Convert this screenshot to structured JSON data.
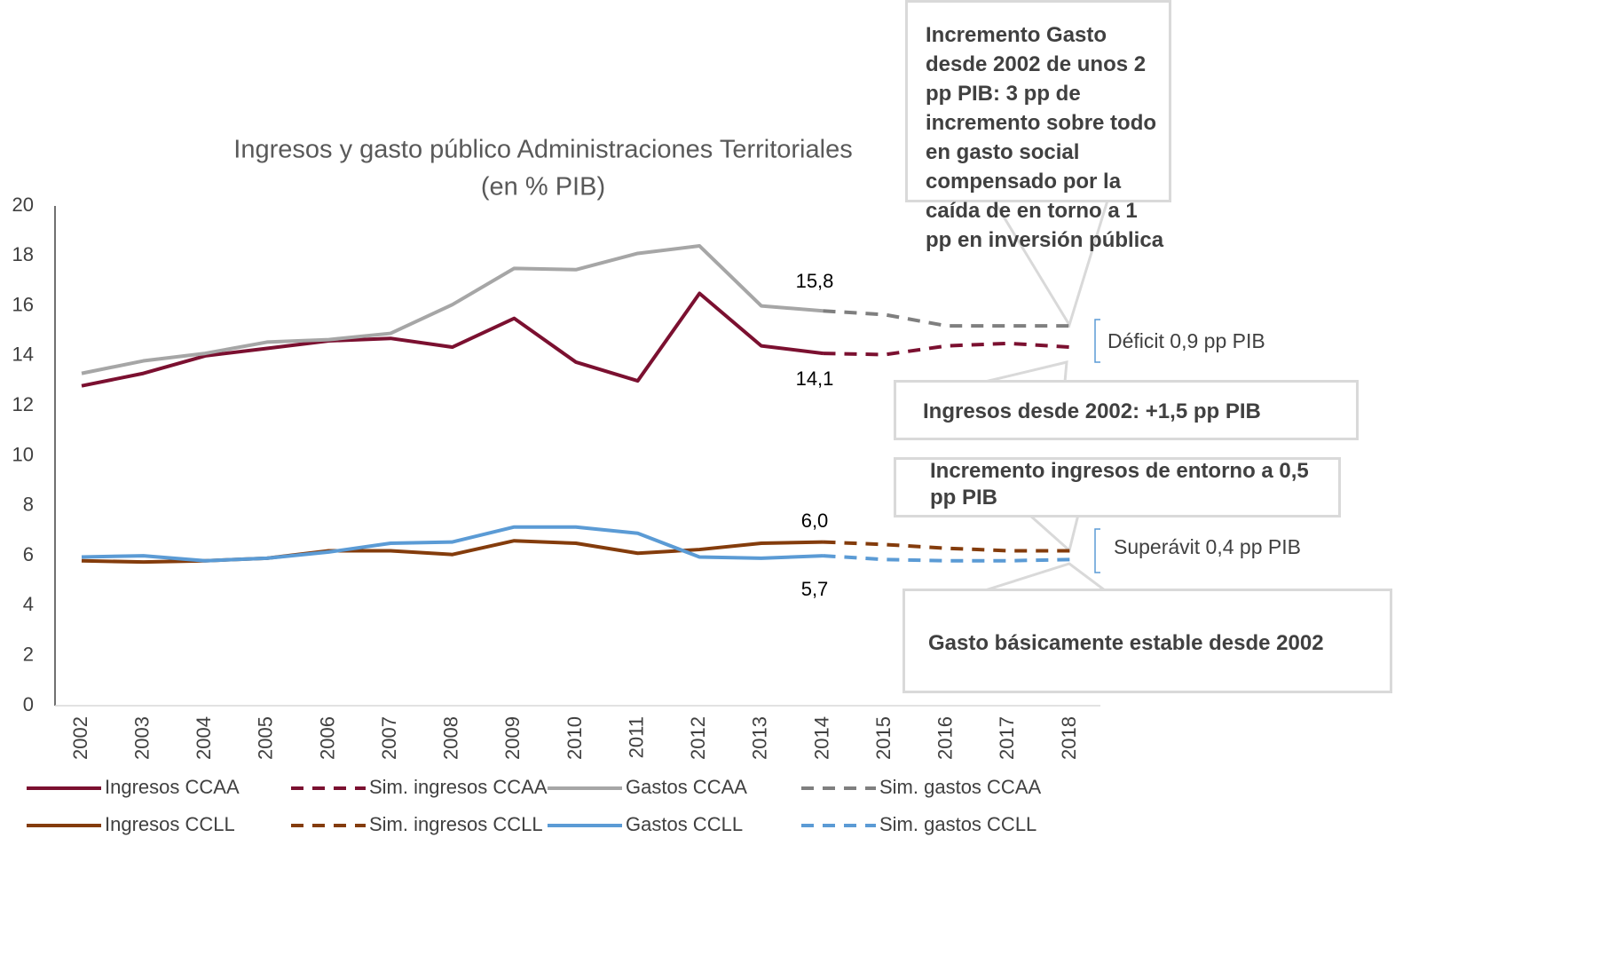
{
  "chart_data": {
    "type": "line",
    "title": "Ingresos y gasto público Administraciones Territoriales",
    "subtitle": "(en % PIB)",
    "categories": [
      "2002",
      "2003",
      "2004",
      "2005",
      "2006",
      "2007",
      "2008",
      "2009",
      "2010",
      "2011",
      "2012",
      "2013",
      "2014",
      "2015",
      "2016",
      "2017",
      "2018"
    ],
    "ylim": [
      0,
      20
    ],
    "yticks": [
      0,
      2,
      4,
      6,
      8,
      10,
      12,
      14,
      16,
      18,
      20
    ],
    "grid": false,
    "legend": "bottom",
    "series": [
      {
        "name": "Ingresos CCAA",
        "color": "#7b1030",
        "style": "solid",
        "values": [
          12.8,
          13.3,
          14.0,
          14.3,
          14.6,
          14.7,
          14.35,
          15.5,
          13.75,
          13.0,
          16.5,
          14.4,
          14.1,
          null,
          null,
          null,
          null
        ]
      },
      {
        "name": "Sim. ingresos CCAA",
        "color": "#7b1030",
        "style": "dashed",
        "values": [
          null,
          null,
          null,
          null,
          null,
          null,
          null,
          null,
          null,
          null,
          null,
          null,
          14.1,
          14.05,
          14.4,
          14.5,
          14.35
        ]
      },
      {
        "name": "Gastos CCAA",
        "color": "#a6a6a6",
        "style": "solid",
        "values": [
          13.3,
          13.8,
          14.1,
          14.55,
          14.65,
          14.9,
          16.05,
          17.5,
          17.45,
          18.1,
          18.4,
          16.0,
          15.8,
          null,
          null,
          null,
          null
        ]
      },
      {
        "name": "Sim. gastos CCAA",
        "color": "#7f7f7f",
        "style": "dashed",
        "values": [
          null,
          null,
          null,
          null,
          null,
          null,
          null,
          null,
          null,
          null,
          null,
          null,
          15.8,
          15.65,
          15.2,
          15.2,
          15.2
        ]
      },
      {
        "name": "Ingresos CCLL",
        "color": "#843c0c",
        "style": "solid",
        "values": [
          5.8,
          5.75,
          5.8,
          5.9,
          6.2,
          6.2,
          6.05,
          6.6,
          6.5,
          6.1,
          6.25,
          6.5,
          6.55,
          null,
          null,
          null,
          null
        ]
      },
      {
        "name": "Sim. ingresos CCLL",
        "color": "#843c0c",
        "style": "dashed",
        "values": [
          null,
          null,
          null,
          null,
          null,
          null,
          null,
          null,
          null,
          null,
          null,
          null,
          6.55,
          6.45,
          6.3,
          6.2,
          6.2
        ]
      },
      {
        "name": "Gastos CCLL",
        "color": "#5b9bd5",
        "style": "solid",
        "values": [
          5.95,
          6.0,
          5.8,
          5.9,
          6.15,
          6.5,
          6.55,
          7.15,
          7.15,
          6.9,
          5.95,
          5.9,
          6.0,
          null,
          null,
          null,
          null
        ]
      },
      {
        "name": "Sim. gastos CCLL",
        "color": "#5b9bd5",
        "style": "dashed",
        "values": [
          null,
          null,
          null,
          null,
          null,
          null,
          null,
          null,
          null,
          null,
          null,
          null,
          6.0,
          5.85,
          5.8,
          5.8,
          5.85
        ]
      }
    ],
    "annotations": [
      "15,8",
      "14,1",
      "6,0",
      "5,7",
      "Déficit 0,9 pp PIB",
      "Superávit 0,4 pp PIB"
    ],
    "callouts": [
      "Incremento Gasto desde 2002 de unos 2 pp PIB: 3 pp de incremento sobre todo en gasto social compensado por la caída de en torno a  1 pp en inversión pública",
      "Ingresos desde 2002: +1,5 pp PIB",
      "Incremento ingresos de entorno a 0,5 pp PIB",
      "Gasto básicamente estable desde 2002"
    ]
  }
}
